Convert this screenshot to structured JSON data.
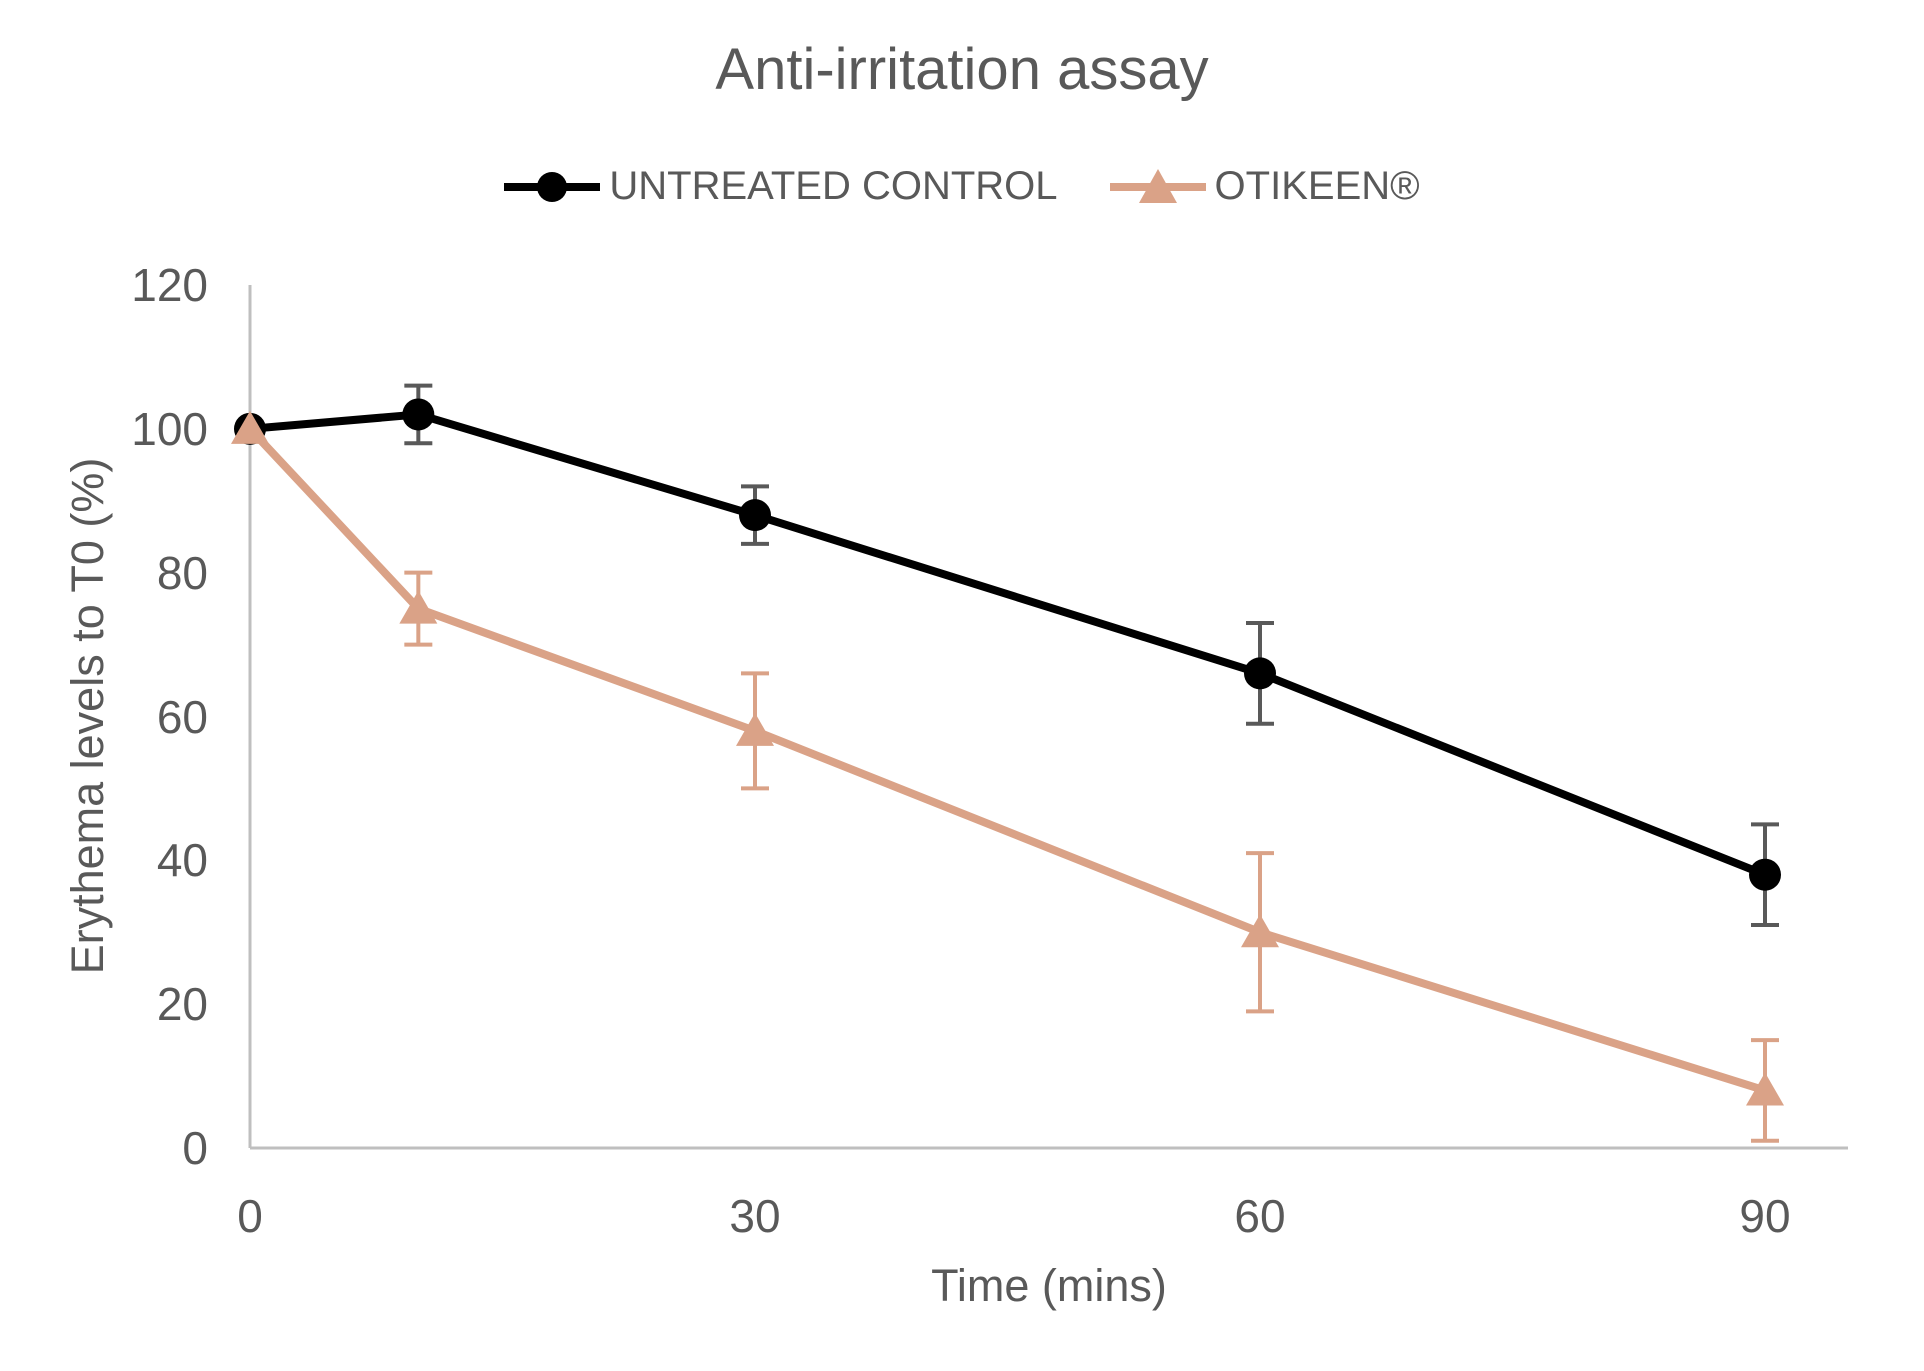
{
  "chart_data": {
    "type": "line",
    "title": "Anti-irritation assay",
    "xlabel": "Time (mins)",
    "ylabel": "Erythema levels to T0 (%)",
    "x": [
      0,
      10,
      30,
      60,
      90
    ],
    "xticks": [
      0,
      30,
      60,
      90
    ],
    "yticks": [
      0,
      20,
      40,
      60,
      80,
      100,
      120
    ],
    "xlim": [
      0,
      95
    ],
    "ylim": [
      0,
      120
    ],
    "grid": false,
    "legend_position": "top-center",
    "series": [
      {
        "name": "UNTREATED CONTROL",
        "marker": "circle",
        "color": "#000000",
        "error_color": "#595959",
        "values": [
          100,
          102,
          88,
          66,
          38
        ],
        "errors": [
          0,
          4,
          4,
          7,
          7
        ]
      },
      {
        "name": "OTIKEEN®",
        "marker": "triangle",
        "color": "#DAA287",
        "error_color": "#DAA287",
        "values": [
          100,
          75,
          58,
          30,
          8
        ],
        "errors": [
          0,
          5,
          8,
          11,
          7
        ]
      }
    ]
  },
  "colors": {
    "background": "#FFFFFF",
    "text": "#595959",
    "axis_line": "#BFBFBF"
  }
}
